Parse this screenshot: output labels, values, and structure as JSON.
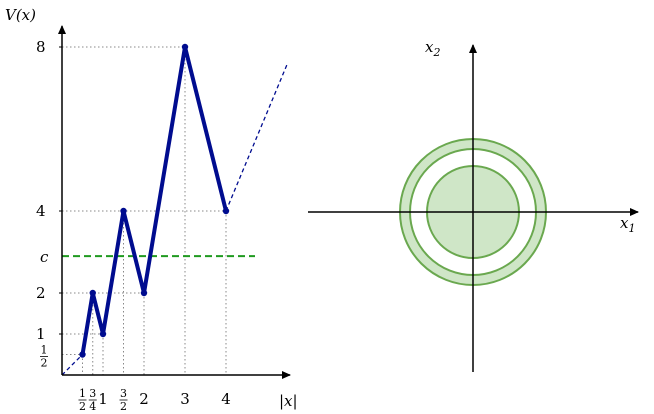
{
  "left_plot": {
    "y_axis_label": "V(x)",
    "x_axis_label": "|x|",
    "y_ticks": [
      {
        "value": 8,
        "label": "8"
      },
      {
        "value": 4,
        "label": "4"
      },
      {
        "value": 2,
        "label": "2"
      },
      {
        "value": 1,
        "label": "1"
      }
    ],
    "y_half_tick": {
      "value": 0.5,
      "num": "1",
      "den": "2"
    },
    "x_ticks": [
      {
        "value": 1,
        "label": "1"
      },
      {
        "value": 2,
        "label": "2"
      },
      {
        "value": 3,
        "label": "3"
      },
      {
        "value": 4,
        "label": "4"
      }
    ],
    "x_frac_ticks": [
      {
        "value": 0.5,
        "num": "1",
        "den": "2"
      },
      {
        "value": 0.75,
        "num": "3",
        "den": "4"
      },
      {
        "value": 1.5,
        "num": "3",
        "den": "2"
      }
    ],
    "c_label": "c",
    "c_value": 2.9,
    "series_points": [
      [
        0.5,
        0.5
      ],
      [
        0.75,
        2
      ],
      [
        1,
        1
      ],
      [
        1.5,
        4
      ],
      [
        2,
        2
      ],
      [
        3,
        8
      ],
      [
        4,
        4
      ]
    ],
    "dashed_start": [
      0,
      0
    ],
    "dashed_end": [
      5.5,
      7.6
    ],
    "colors": {
      "curve": "#000c8f",
      "c_line": "#1f9a1f",
      "c_text": "#1f9a1f",
      "grid": "#888888"
    }
  },
  "right_plot": {
    "x_axis_label": "x",
    "x_axis_sub": "1",
    "y_axis_label": "x",
    "y_axis_sub": "2",
    "colors": {
      "fill": "#cfe6c7",
      "stroke": "#6aa84f"
    }
  }
}
